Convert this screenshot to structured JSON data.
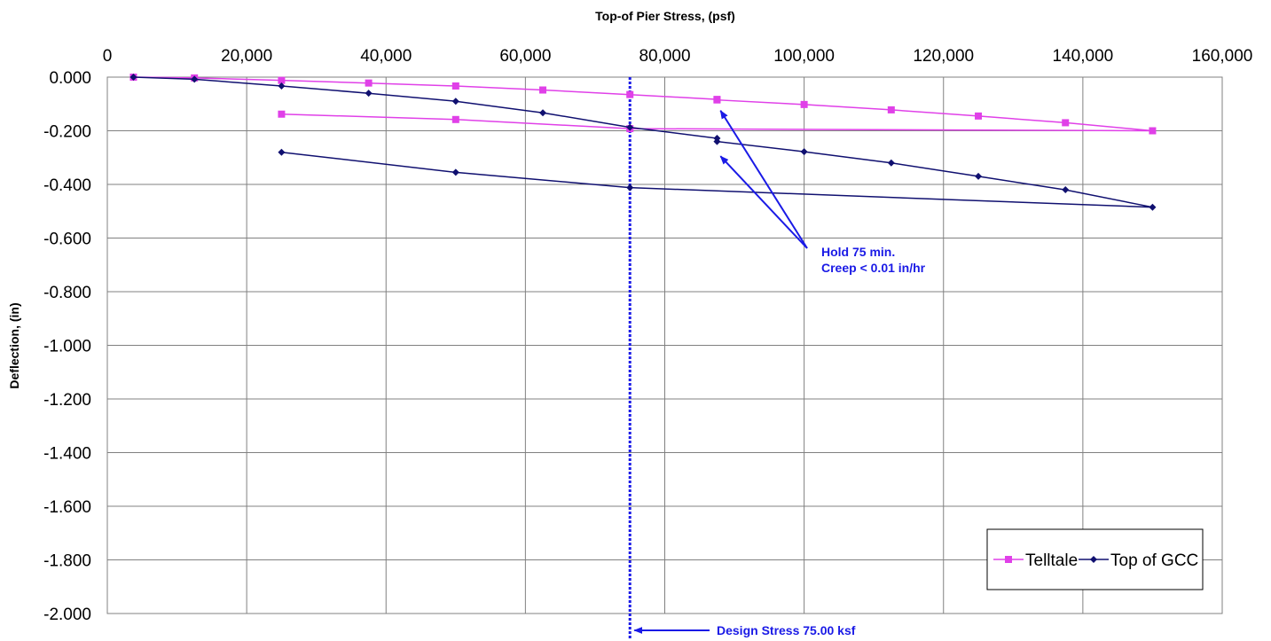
{
  "chart_data": {
    "type": "line",
    "title": "Top-of Pier Stress, (psf)",
    "xlabel": "Top-of Pier Stress, (psf)",
    "ylabel": "Deflection, (in)",
    "xlim": [
      0,
      160000
    ],
    "ylim": [
      -2.0,
      0.0
    ],
    "x_ticks": [
      "0",
      "20,000",
      "40,000",
      "60,000",
      "80,000",
      "100,000",
      "120,000",
      "140,000",
      "160,000"
    ],
    "y_ticks": [
      "0.000",
      "-0.200",
      "-0.400",
      "-0.600",
      "-0.800",
      "-1.000",
      "-1.200",
      "-1.400",
      "-1.600",
      "-1.800",
      "-2.000"
    ],
    "x_tick_values": [
      0,
      20000,
      40000,
      60000,
      80000,
      100000,
      120000,
      140000,
      160000
    ],
    "y_tick_values": [
      0,
      -0.2,
      -0.4,
      -0.6,
      -0.8,
      -1.0,
      -1.2,
      -1.4,
      -1.6,
      -1.8,
      -2.0
    ],
    "x_axis_position": "top",
    "grid": true,
    "legend_position": "bottom-right",
    "series": [
      {
        "name": "Telltale",
        "color": "#e040e8",
        "marker": "square",
        "points": [
          [
            3750,
            0.0
          ],
          [
            12500,
            -0.003
          ],
          [
            25000,
            -0.012
          ],
          [
            37500,
            -0.022
          ],
          [
            50000,
            -0.033
          ],
          [
            62500,
            -0.048
          ],
          [
            75000,
            -0.065
          ],
          [
            87500,
            -0.083
          ],
          [
            87500,
            -0.085
          ],
          [
            100000,
            -0.102
          ],
          [
            112500,
            -0.122
          ],
          [
            125000,
            -0.145
          ],
          [
            137500,
            -0.17
          ],
          [
            150000,
            -0.2
          ],
          [
            75000,
            -0.192
          ],
          [
            50000,
            -0.158
          ],
          [
            25000,
            -0.138
          ]
        ]
      },
      {
        "name": "Top of GCC",
        "color": "#101070",
        "marker": "diamond",
        "points": [
          [
            3750,
            0.0
          ],
          [
            12500,
            -0.008
          ],
          [
            25000,
            -0.033
          ],
          [
            37500,
            -0.06
          ],
          [
            50000,
            -0.09
          ],
          [
            62500,
            -0.133
          ],
          [
            75000,
            -0.187
          ],
          [
            87500,
            -0.228
          ],
          [
            87500,
            -0.24
          ],
          [
            100000,
            -0.278
          ],
          [
            112500,
            -0.32
          ],
          [
            125000,
            -0.37
          ],
          [
            137500,
            -0.42
          ],
          [
            150000,
            -0.485
          ],
          [
            75000,
            -0.412
          ],
          [
            50000,
            -0.355
          ],
          [
            25000,
            -0.28
          ]
        ]
      }
    ],
    "design_line": {
      "x": 75000,
      "label": "Design Stress 75.00 ksf",
      "color": "#1a1ae6"
    },
    "annotations": [
      {
        "lines": [
          "Hold 75 min.",
          "Creep < 0.01 in/hr"
        ],
        "color": "#1a1ae6",
        "arrow_targets": [
          [
            88000,
            -0.125
          ],
          [
            88000,
            -0.295
          ]
        ]
      }
    ]
  }
}
